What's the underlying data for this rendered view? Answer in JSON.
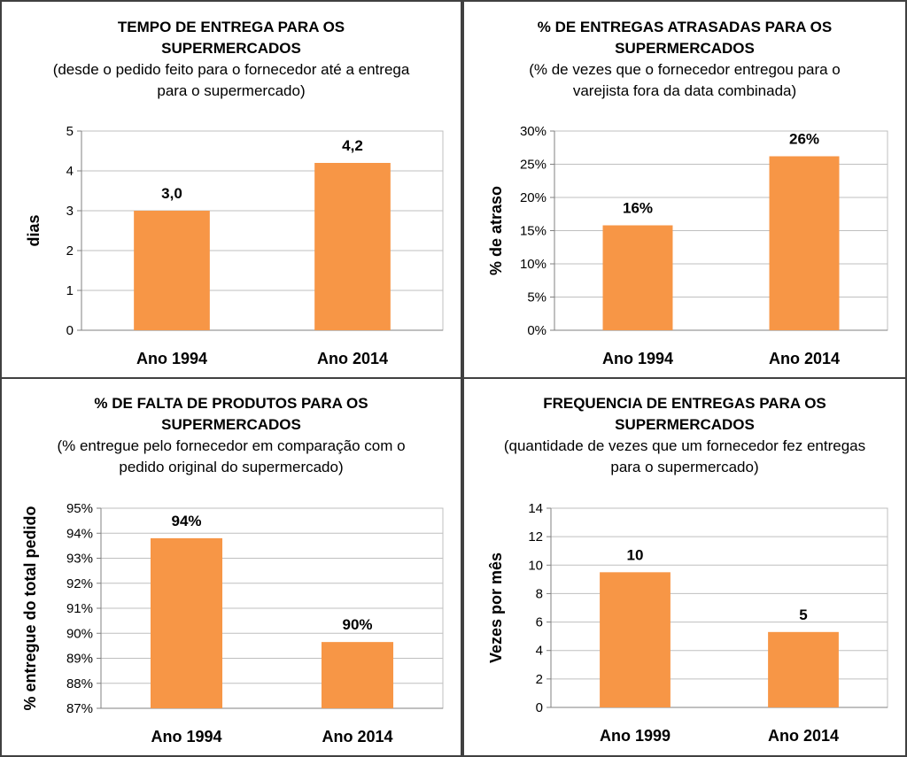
{
  "chart_data": [
    {
      "type": "bar",
      "title": "TEMPO DE ENTREGA PARA OS SUPERMERCADOS",
      "subtitle": "(desde o pedido feito para o fornecedor até a entrega para o supermercado)",
      "categories": [
        "Ano 1994",
        "Ano 2014"
      ],
      "values": [
        3.0,
        4.2
      ],
      "data_labels": [
        "3,0",
        "4,2"
      ],
      "xlabel": "",
      "ylabel": "dias",
      "ylim": [
        0,
        5
      ],
      "yticks": [
        0,
        1,
        2,
        3,
        4,
        5
      ],
      "ytick_labels": [
        "0",
        "1",
        "2",
        "3",
        "4",
        "5"
      ],
      "grid": true,
      "legend": "none",
      "color": "#F79646"
    },
    {
      "type": "bar",
      "title": "% DE ENTREGAS ATRASADAS PARA OS SUPERMERCADOS",
      "subtitle": "(% de vezes que o fornecedor entregou para o varejista fora da data combinada)",
      "categories": [
        "Ano 1994",
        "Ano 2014"
      ],
      "values": [
        15.8,
        26.2
      ],
      "data_labels": [
        "16%",
        "26%"
      ],
      "xlabel": "",
      "ylabel": "% de atraso",
      "ylim": [
        0,
        30
      ],
      "yticks": [
        0,
        5,
        10,
        15,
        20,
        25,
        30
      ],
      "ytick_labels": [
        "0%",
        "5%",
        "10%",
        "15%",
        "20%",
        "25%",
        "30%"
      ],
      "grid": true,
      "legend": "none",
      "color": "#F79646"
    },
    {
      "type": "bar",
      "title": "% DE FALTA DE PRODUTOS PARA OS SUPERMERCADOS",
      "subtitle": "(% entregue pelo fornecedor em comparação com o pedido original do supermercado)",
      "categories": [
        "Ano 1994",
        "Ano 2014"
      ],
      "values": [
        93.8,
        89.65
      ],
      "data_labels": [
        "94%",
        "90%"
      ],
      "xlabel": "",
      "ylabel": "% entregue do total pedido",
      "ylim": [
        87,
        95
      ],
      "yticks": [
        87,
        88,
        89,
        90,
        91,
        92,
        93,
        94,
        95
      ],
      "ytick_labels": [
        "87%",
        "88%",
        "89%",
        "90%",
        "91%",
        "92%",
        "93%",
        "94%",
        "95%"
      ],
      "grid": true,
      "legend": "none",
      "color": "#F79646"
    },
    {
      "type": "bar",
      "title": "FREQUENCIA DE ENTREGAS PARA OS SUPERMERCADOS",
      "subtitle": "(quantidade de vezes que um fornecedor fez entregas para o supermercado)",
      "categories": [
        "Ano 1999",
        "Ano 2014"
      ],
      "values": [
        9.5,
        5.3
      ],
      "data_labels": [
        "10",
        "5"
      ],
      "xlabel": "",
      "ylabel": "Vezes por mês",
      "ylim": [
        0,
        14
      ],
      "yticks": [
        0,
        2,
        4,
        6,
        8,
        10,
        12,
        14
      ],
      "ytick_labels": [
        "0",
        "2",
        "4",
        "6",
        "8",
        "10",
        "12",
        "14"
      ],
      "grid": true,
      "legend": "none",
      "color": "#F79646"
    }
  ]
}
